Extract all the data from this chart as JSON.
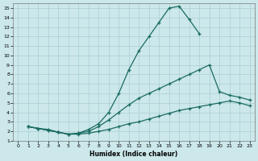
{
  "xlabel": "Humidex (Indice chaleur)",
  "xlim": [
    -0.5,
    23.5
  ],
  "ylim": [
    1,
    15.5
  ],
  "xticks": [
    0,
    1,
    2,
    3,
    4,
    5,
    6,
    7,
    8,
    9,
    10,
    11,
    12,
    13,
    14,
    15,
    16,
    17,
    18,
    19,
    20,
    21,
    22,
    23
  ],
  "yticks": [
    1,
    2,
    3,
    4,
    5,
    6,
    7,
    8,
    9,
    10,
    11,
    12,
    13,
    14,
    15
  ],
  "bg_color": "#cce8ea",
  "line_color": "#1a6b62",
  "grid_color": "#aacfd4",
  "line_big_x": [
    1,
    2,
    3,
    4,
    5,
    6,
    7,
    8,
    9,
    10,
    11,
    12,
    13,
    14,
    15,
    16,
    17,
    18
  ],
  "line_big_y": [
    2.5,
    2.3,
    2.2,
    1.9,
    1.7,
    1.8,
    2.2,
    2.8,
    4.0,
    6.0,
    8.5,
    10.5,
    12.0,
    13.5,
    15.0,
    15.2,
    13.8,
    12.3
  ],
  "line_mid_x": [
    1,
    2,
    3,
    4,
    5,
    6,
    7,
    8,
    9,
    10,
    11,
    12,
    13,
    14,
    15,
    16,
    17,
    18,
    19,
    20,
    21,
    22,
    23
  ],
  "line_mid_y": [
    2.5,
    2.3,
    2.1,
    1.9,
    1.7,
    1.8,
    2.0,
    2.5,
    3.2,
    4.0,
    4.8,
    5.5,
    6.0,
    6.5,
    7.0,
    7.5,
    8.0,
    8.5,
    9.0,
    6.2,
    5.8,
    5.6,
    5.3
  ],
  "line_low_x": [
    1,
    2,
    3,
    4,
    5,
    6,
    7,
    8,
    9,
    10,
    11,
    12,
    13,
    14,
    15,
    16,
    17,
    18,
    19,
    20,
    21,
    22,
    23
  ],
  "line_low_y": [
    2.5,
    2.3,
    2.1,
    1.9,
    1.7,
    1.7,
    1.8,
    2.0,
    2.2,
    2.5,
    2.8,
    3.0,
    3.3,
    3.6,
    3.9,
    4.2,
    4.4,
    4.6,
    4.8,
    5.0,
    5.2,
    5.0,
    4.7
  ]
}
